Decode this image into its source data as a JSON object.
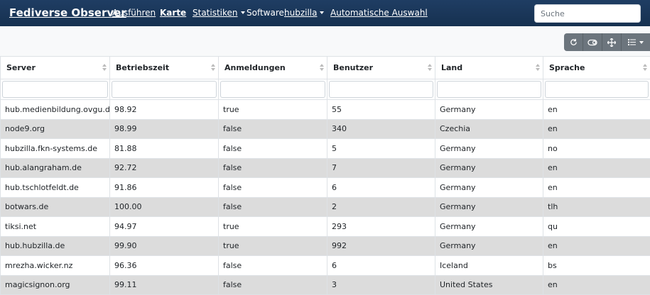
{
  "navbar": {
    "brand": "Fediverse Observer",
    "run": "Ausführen",
    "map": "Karte",
    "stats": "Statistiken",
    "software_label": "Software:",
    "software_value": "hubzilla",
    "auto_select": "Automatische Auswahl",
    "search_placeholder": "Suche"
  },
  "toolbar": {
    "icons": [
      "refresh-icon",
      "toggle-icon",
      "fullscreen-icon",
      "columns-icon"
    ]
  },
  "table": {
    "headers": [
      "Server",
      "Betriebszeit",
      "Anmeldungen",
      "Benutzer",
      "Land",
      "Sprache"
    ],
    "rows": [
      [
        "hub.medienbildung.ovgu.de",
        "98.92",
        "true",
        "55",
        "Germany",
        "en"
      ],
      [
        "node9.org",
        "98.99",
        "false",
        "340",
        "Czechia",
        "en"
      ],
      [
        "hubzilla.fkn-systems.de",
        "81.88",
        "false",
        "5",
        "Germany",
        "no"
      ],
      [
        "hub.alangraham.de",
        "92.72",
        "false",
        "7",
        "Germany",
        "en"
      ],
      [
        "hub.tschlotfeldt.de",
        "91.86",
        "false",
        "6",
        "Germany",
        "en"
      ],
      [
        "botwars.de",
        "100.00",
        "false",
        "2",
        "Germany",
        "tlh"
      ],
      [
        "tiksi.net",
        "94.97",
        "true",
        "293",
        "Germany",
        "qu"
      ],
      [
        "hub.hubzilla.de",
        "99.90",
        "true",
        "992",
        "Germany",
        "en"
      ],
      [
        "mrezha.wicker.nz",
        "96.36",
        "false",
        "6",
        "Iceland",
        "bs"
      ],
      [
        "magicsignon.org",
        "99.11",
        "false",
        "3",
        "United States",
        "en"
      ]
    ]
  }
}
